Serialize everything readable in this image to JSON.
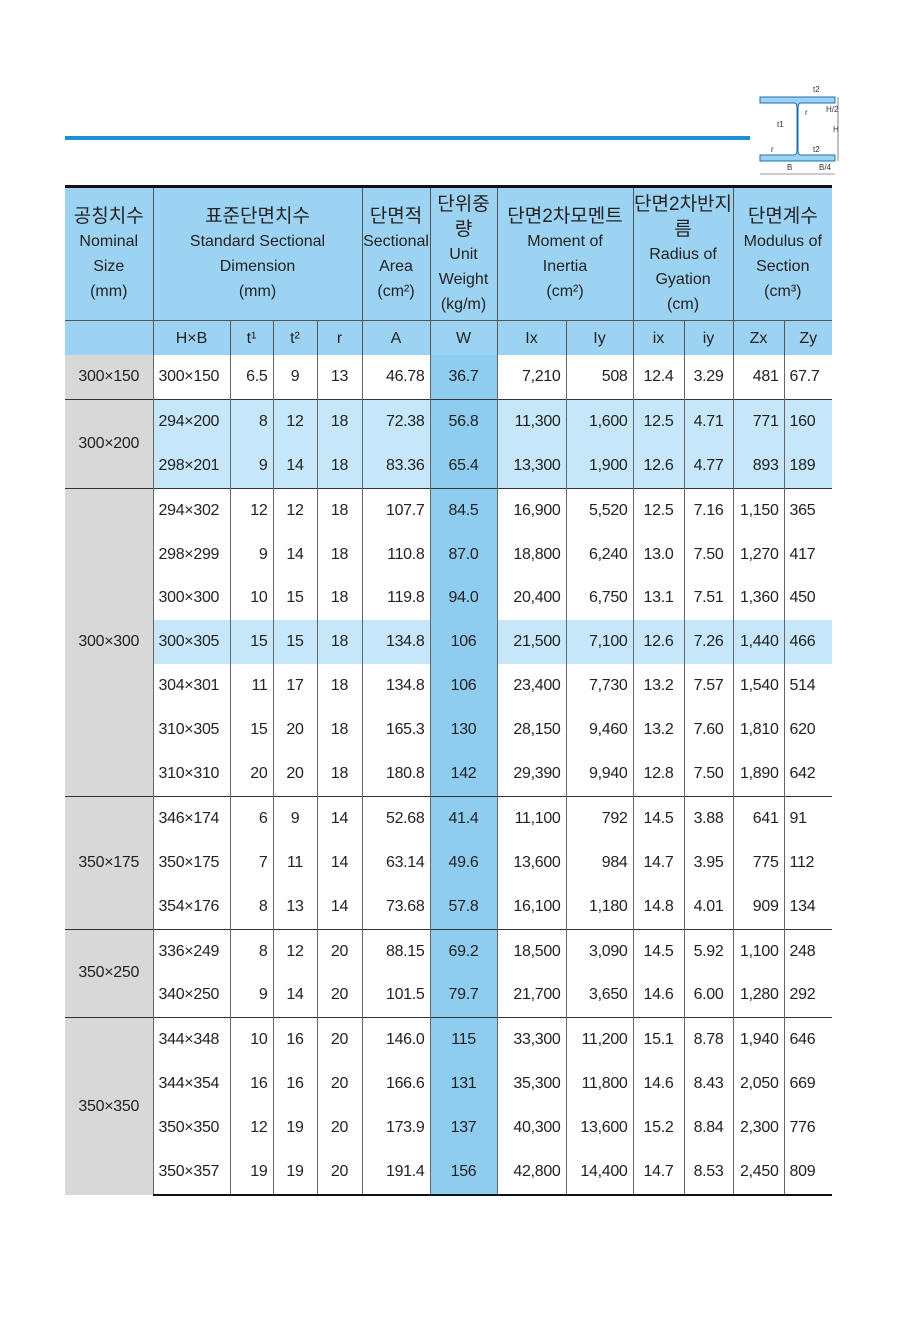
{
  "diagram": {
    "labels": {
      "t1": "t1",
      "t2": "t2",
      "r": "r",
      "H": "H",
      "H2": "H/2",
      "B": "B",
      "B4": "B/4"
    }
  },
  "colors": {
    "rule": "#1b8fd6",
    "header": "#9dd3f2",
    "weight_column": "#8fcdf0",
    "highlight_row": "#c6e7f9",
    "nominal": "#d8d8d8"
  },
  "header": [
    {
      "ko": "공칭치수",
      "en": [
        "Nominal",
        "Size",
        "(mm)"
      ]
    },
    {
      "ko": "표준단면치수",
      "en": [
        "Standard Sectional",
        "Dimension",
        "(mm)"
      ]
    },
    {
      "ko": "단면적",
      "en": [
        "Sectional",
        "Area",
        "(cm²)"
      ]
    },
    {
      "ko": "단위중량",
      "en": [
        "Unit",
        "Weight",
        "(kg/m)"
      ]
    },
    {
      "ko": "단면2차모멘트",
      "en": [
        "Moment of",
        "Inertia",
        "(cm²)"
      ]
    },
    {
      "ko": "단면2차반지름",
      "en": [
        "Radius of",
        "Gyation",
        "(cm)"
      ]
    },
    {
      "ko": "단면계수",
      "en": [
        "Modulus of",
        "Section",
        "(cm³)"
      ]
    }
  ],
  "subheader": [
    "H×B",
    "t¹",
    "t²",
    "r",
    "A",
    "W",
    "Ix",
    "Iy",
    "ix",
    "iy",
    "Zx",
    "Zy"
  ],
  "groups": [
    {
      "nominal": "300×150",
      "rows": [
        [
          "300×150",
          "6.5",
          "9",
          "13",
          "46.78",
          "36.7",
          "7,210",
          "508",
          "12.4",
          "3.29",
          "481",
          "67.7"
        ]
      ]
    },
    {
      "nominal": "300×200",
      "highlight": [
        0,
        1
      ],
      "rows": [
        [
          "294×200",
          "8",
          "12",
          "18",
          "72.38",
          "56.8",
          "11,300",
          "1,600",
          "12.5",
          "4.71",
          "771",
          "160"
        ],
        [
          "298×201",
          "9",
          "14",
          "18",
          "83.36",
          "65.4",
          "13,300",
          "1,900",
          "12.6",
          "4.77",
          "893",
          "189"
        ]
      ]
    },
    {
      "nominal": "300×300",
      "highlight": [
        3
      ],
      "rows": [
        [
          "294×302",
          "12",
          "12",
          "18",
          "107.7",
          "84.5",
          "16,900",
          "5,520",
          "12.5",
          "7.16",
          "1,150",
          "365"
        ],
        [
          "298×299",
          "9",
          "14",
          "18",
          "110.8",
          "87.0",
          "18,800",
          "6,240",
          "13.0",
          "7.50",
          "1,270",
          "417"
        ],
        [
          "300×300",
          "10",
          "15",
          "18",
          "119.8",
          "94.0",
          "20,400",
          "6,750",
          "13.1",
          "7.51",
          "1,360",
          "450"
        ],
        [
          "300×305",
          "15",
          "15",
          "18",
          "134.8",
          "106",
          "21,500",
          "7,100",
          "12.6",
          "7.26",
          "1,440",
          "466"
        ],
        [
          "304×301",
          "11",
          "17",
          "18",
          "134.8",
          "106",
          "23,400",
          "7,730",
          "13.2",
          "7.57",
          "1,540",
          "514"
        ],
        [
          "310×305",
          "15",
          "20",
          "18",
          "165.3",
          "130",
          "28,150",
          "9,460",
          "13.2",
          "7.60",
          "1,810",
          "620"
        ],
        [
          "310×310",
          "20",
          "20",
          "18",
          "180.8",
          "142",
          "29,390",
          "9,940",
          "12.8",
          "7.50",
          "1,890",
          "642"
        ]
      ]
    },
    {
      "nominal": "350×175",
      "rows": [
        [
          "346×174",
          "6",
          "9",
          "14",
          "52.68",
          "41.4",
          "11,100",
          "792",
          "14.5",
          "3.88",
          "641",
          "91"
        ],
        [
          "350×175",
          "7",
          "11",
          "14",
          "63.14",
          "49.6",
          "13,600",
          "984",
          "14.7",
          "3.95",
          "775",
          "112"
        ],
        [
          "354×176",
          "8",
          "13",
          "14",
          "73.68",
          "57.8",
          "16,100",
          "1,180",
          "14.8",
          "4.01",
          "909",
          "134"
        ]
      ]
    },
    {
      "nominal": "350×250",
      "rows": [
        [
          "336×249",
          "8",
          "12",
          "20",
          "88.15",
          "69.2",
          "18,500",
          "3,090",
          "14.5",
          "5.92",
          "1,100",
          "248"
        ],
        [
          "340×250",
          "9",
          "14",
          "20",
          "101.5",
          "79.7",
          "21,700",
          "3,650",
          "14.6",
          "6.00",
          "1,280",
          "292"
        ]
      ]
    },
    {
      "nominal": "350×350",
      "rows": [
        [
          "344×348",
          "10",
          "16",
          "20",
          "146.0",
          "115",
          "33,300",
          "11,200",
          "15.1",
          "8.78",
          "1,940",
          "646"
        ],
        [
          "344×354",
          "16",
          "16",
          "20",
          "166.6",
          "131",
          "35,300",
          "11,800",
          "14.6",
          "8.43",
          "2,050",
          "669"
        ],
        [
          "350×350",
          "12",
          "19",
          "20",
          "173.9",
          "137",
          "40,300",
          "13,600",
          "15.2",
          "8.84",
          "2,300",
          "776"
        ],
        [
          "350×357",
          "19",
          "19",
          "20",
          "191.4",
          "156",
          "42,800",
          "14,400",
          "14.7",
          "8.53",
          "2,450",
          "809"
        ]
      ]
    }
  ]
}
